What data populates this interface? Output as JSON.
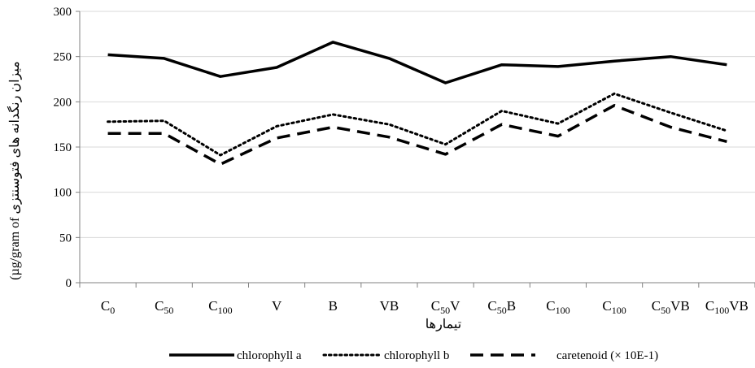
{
  "chart_data": {
    "type": "line",
    "title": "",
    "ylabel": "(µg/gram of میزان رنگدانه های فتوسنتزی",
    "xlabel": "تیمارها",
    "ylim": [
      0,
      300
    ],
    "yticks": [
      0,
      50,
      100,
      150,
      200,
      250,
      300
    ],
    "ytick_labels": [
      "0",
      "50",
      "100",
      "150",
      "200",
      "250",
      "300"
    ],
    "grid": true,
    "legend_position": "bottom",
    "categories": [
      {
        "base": "C",
        "sub": "0",
        "suffix": ""
      },
      {
        "base": "C",
        "sub": "50",
        "suffix": ""
      },
      {
        "base": "C",
        "sub": "100",
        "suffix": ""
      },
      {
        "base": "V",
        "sub": "",
        "suffix": ""
      },
      {
        "base": "B",
        "sub": "",
        "suffix": ""
      },
      {
        "base": "VB",
        "sub": "",
        "suffix": ""
      },
      {
        "base": "C",
        "sub": "50",
        "suffix": "V"
      },
      {
        "base": "C",
        "sub": "50",
        "suffix": "B"
      },
      {
        "base": "C",
        "sub": "100",
        "suffix": ""
      },
      {
        "base": "C",
        "sub": "100",
        "suffix": ""
      },
      {
        "base": "C",
        "sub": "50",
        "suffix": "VB"
      },
      {
        "base": "C",
        "sub": "100",
        "suffix": "VB"
      }
    ],
    "series": [
      {
        "name": "chlorophyll a",
        "style": "solid",
        "color": "#000000",
        "values": [
          252,
          248,
          228,
          238,
          266,
          248,
          221,
          241,
          239,
          245,
          250,
          241
        ]
      },
      {
        "name": "chlorophyll b",
        "style": "dotted",
        "color": "#000000",
        "values": [
          178,
          179,
          141,
          173,
          186,
          175,
          153,
          190,
          176,
          209,
          188,
          168
        ]
      },
      {
        "name": "caretenoid (× 10E-1)",
        "style": "dashed",
        "color": "#000000",
        "values": [
          165,
          165,
          131,
          160,
          172,
          161,
          142,
          175,
          162,
          196,
          172,
          156
        ]
      }
    ]
  }
}
